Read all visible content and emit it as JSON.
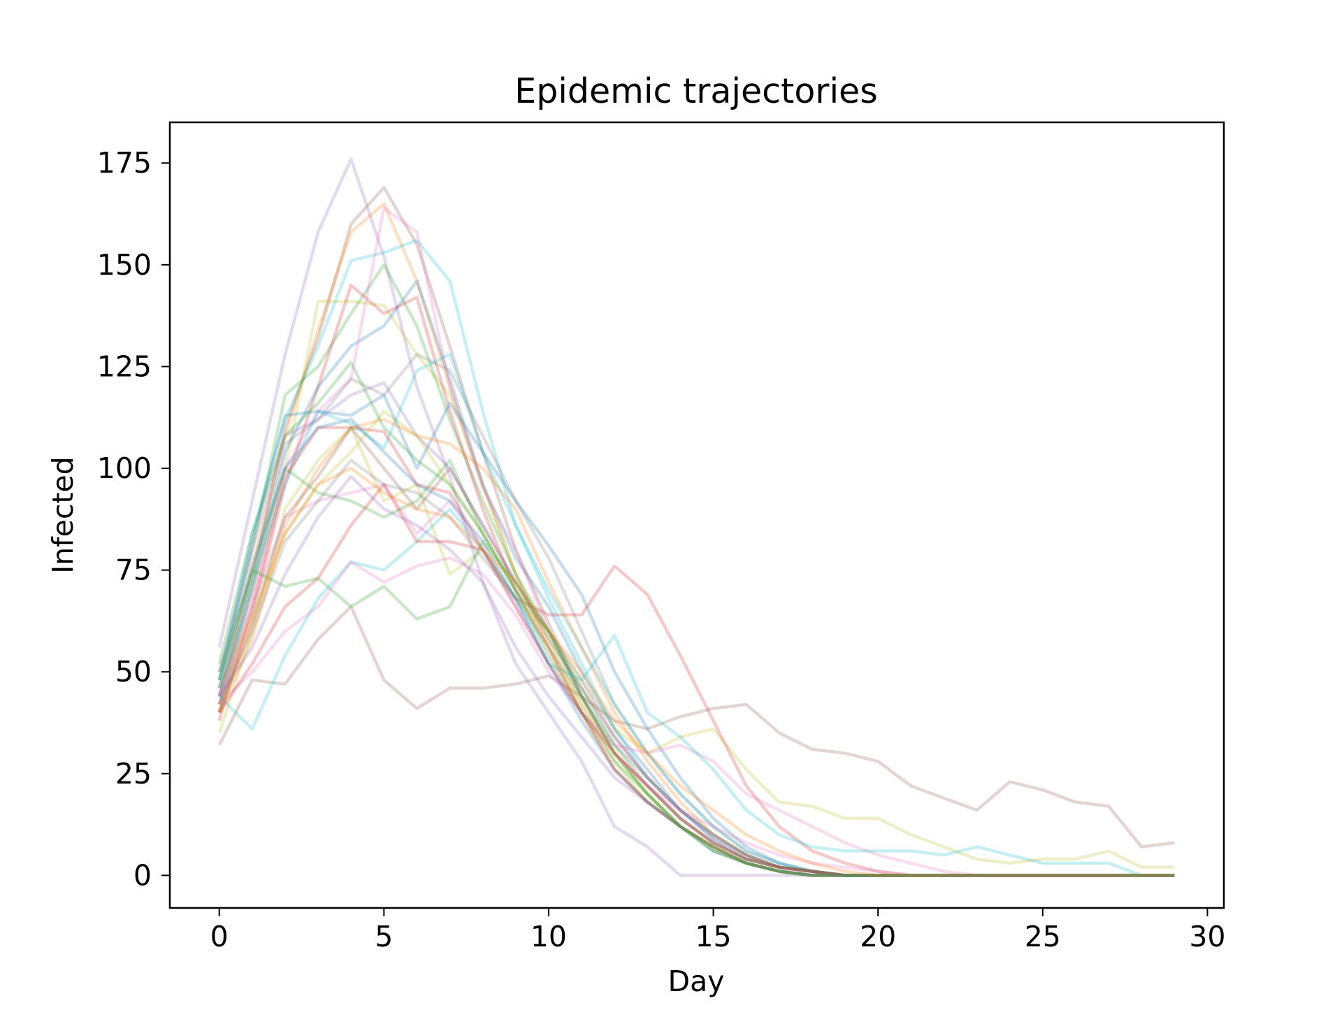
{
  "chart_data": {
    "type": "line",
    "title": "Epidemic trajectories",
    "xlabel": "Day",
    "ylabel": "Infected",
    "xlim": [
      -1.5,
      30.5
    ],
    "ylim": [
      -8,
      185
    ],
    "xticks": [
      0,
      5,
      10,
      15,
      20,
      25,
      30
    ],
    "yticks": [
      0,
      25,
      50,
      75,
      100,
      125,
      150,
      175
    ],
    "grid": false,
    "legend": "none",
    "line_opacity": 0.25,
    "x": [
      0,
      1,
      2,
      3,
      4,
      5,
      6,
      7,
      8,
      9,
      10,
      11,
      12,
      13,
      14,
      15,
      16,
      17,
      18,
      19,
      20,
      21,
      22,
      23,
      24,
      25,
      26,
      27,
      28,
      29
    ],
    "series": [
      {
        "color": "#8c564b",
        "values": [
          32,
          48,
          47,
          58,
          66,
          48,
          41,
          46,
          46,
          47,
          49,
          44,
          38,
          36,
          39,
          41,
          42,
          35,
          31,
          30,
          28,
          22,
          19,
          16,
          23,
          21,
          18,
          17,
          7,
          8
        ]
      },
      {
        "color": "#9467bd",
        "values": [
          56,
          92,
          128,
          158,
          176,
          152,
          120,
          98,
          72,
          52,
          40,
          28,
          12,
          7,
          0,
          0,
          0,
          0,
          0,
          0,
          0,
          0,
          0,
          0,
          0,
          0,
          0,
          0,
          0,
          0
        ]
      },
      {
        "color": "#8c564b",
        "values": [
          44,
          72,
          110,
          132,
          160,
          169,
          155,
          130,
          104,
          80,
          62,
          44,
          30,
          22,
          14,
          8,
          4,
          2,
          1,
          0,
          0,
          0,
          0,
          0,
          0,
          0,
          0,
          0,
          0,
          0
        ]
      },
      {
        "color": "#ff7f0e",
        "values": [
          42,
          76,
          108,
          134,
          158,
          165,
          146,
          120,
          96,
          74,
          56,
          40,
          26,
          18,
          12,
          7,
          3,
          1,
          0,
          0,
          0,
          0,
          0,
          0,
          0,
          0,
          0,
          0,
          0,
          0
        ]
      },
      {
        "color": "#17becf",
        "values": [
          48,
          84,
          112,
          130,
          151,
          153,
          156,
          146,
          114,
          86,
          68,
          52,
          36,
          24,
          16,
          10,
          5,
          2,
          1,
          0,
          0,
          0,
          0,
          0,
          0,
          0,
          0,
          0,
          0,
          0
        ]
      },
      {
        "color": "#bcbd22",
        "values": [
          40,
          70,
          100,
          141,
          141,
          140,
          128,
          118,
          96,
          74,
          58,
          42,
          28,
          18,
          12,
          6,
          3,
          1,
          0,
          0,
          0,
          0,
          0,
          0,
          0,
          0,
          0,
          0,
          0,
          0
        ]
      },
      {
        "color": "#2ca02c",
        "values": [
          46,
          80,
          118,
          125,
          138,
          150,
          135,
          112,
          92,
          74,
          60,
          44,
          30,
          20,
          12,
          7,
          3,
          1,
          0,
          0,
          0,
          0,
          0,
          0,
          0,
          0,
          0,
          0,
          0,
          0
        ]
      },
      {
        "color": "#d62728",
        "values": [
          42,
          64,
          96,
          120,
          145,
          138,
          142,
          114,
          90,
          70,
          56,
          40,
          26,
          18,
          12,
          7,
          3,
          1,
          0,
          0,
          0,
          0,
          0,
          0,
          0,
          0,
          0,
          0,
          0,
          0
        ]
      },
      {
        "color": "#1f77b4",
        "values": [
          44,
          70,
          104,
          120,
          130,
          135,
          146,
          122,
          96,
          78,
          66,
          50,
          36,
          26,
          16,
          9,
          4,
          2,
          1,
          0,
          0,
          0,
          0,
          0,
          0,
          0,
          0,
          0,
          0,
          0
        ]
      },
      {
        "color": "#e377c2",
        "values": [
          42,
          68,
          100,
          114,
          122,
          164,
          158,
          120,
          95,
          80,
          60,
          44,
          30,
          22,
          14,
          8,
          4,
          2,
          0,
          0,
          0,
          0,
          0,
          0,
          0,
          0,
          0,
          0,
          0,
          0
        ]
      },
      {
        "color": "#7f7f7f",
        "values": [
          44,
          74,
          106,
          112,
          122,
          118,
          128,
          124,
          108,
          92,
          78,
          60,
          42,
          30,
          20,
          12,
          6,
          3,
          1,
          0,
          0,
          0,
          0,
          0,
          0,
          0,
          0,
          0,
          0,
          0
        ]
      },
      {
        "color": "#1f77b4",
        "values": [
          48,
          82,
          113,
          114,
          113,
          118,
          100,
          116,
          104,
          92,
          81,
          69,
          50,
          36,
          24,
          14,
          7,
          3,
          1,
          0,
          0,
          0,
          0,
          0,
          0,
          0,
          0,
          0,
          0,
          0
        ]
      },
      {
        "color": "#9467bd",
        "values": [
          50,
          80,
          108,
          112,
          118,
          121,
          108,
          100,
          86,
          72,
          60,
          48,
          34,
          24,
          16,
          9,
          5,
          2,
          1,
          0,
          0,
          0,
          0,
          0,
          0,
          0,
          0,
          0,
          0,
          0
        ]
      },
      {
        "color": "#17becf",
        "values": [
          40,
          72,
          96,
          114,
          111,
          105,
          124,
          128,
          104,
          86,
          70,
          56,
          42,
          30,
          20,
          12,
          6,
          3,
          1,
          0,
          0,
          0,
          0,
          0,
          0,
          0,
          0,
          0,
          0,
          0
        ]
      },
      {
        "color": "#d62728",
        "values": [
          38,
          66,
          98,
          110,
          110,
          109,
          96,
          94,
          80,
          68,
          64,
          64,
          76,
          69,
          54,
          38,
          22,
          12,
          6,
          3,
          1,
          0,
          0,
          0,
          0,
          0,
          0,
          0,
          0,
          0
        ]
      },
      {
        "color": "#ff7f0e",
        "values": [
          40,
          58,
          86,
          100,
          110,
          112,
          108,
          106,
          100,
          90,
          72,
          56,
          40,
          28,
          18,
          10,
          5,
          2,
          1,
          0,
          0,
          0,
          0,
          0,
          0,
          0,
          0,
          0,
          0,
          0
        ]
      },
      {
        "color": "#bcbd22",
        "values": [
          35,
          60,
          90,
          102,
          110,
          92,
          96,
          74,
          80,
          68,
          60,
          48,
          36,
          30,
          34,
          36,
          26,
          18,
          17,
          14,
          14,
          10,
          7,
          4,
          3,
          4,
          4,
          6,
          2,
          2
        ]
      },
      {
        "color": "#2ca02c",
        "values": [
          48,
          74,
          100,
          94,
          92,
          88,
          92,
          102,
          84,
          70,
          60,
          46,
          32,
          22,
          14,
          8,
          4,
          2,
          1,
          0,
          0,
          0,
          0,
          0,
          0,
          0,
          0,
          0,
          0,
          0
        ]
      },
      {
        "color": "#8c564b",
        "values": [
          40,
          62,
          88,
          98,
          110,
          100,
          90,
          100,
          86,
          72,
          58,
          46,
          34,
          24,
          16,
          10,
          5,
          2,
          1,
          0,
          0,
          0,
          0,
          0,
          0,
          0,
          0,
          0,
          0,
          0
        ]
      },
      {
        "color": "#e377c2",
        "values": [
          44,
          66,
          88,
          92,
          94,
          96,
          84,
          92,
          80,
          66,
          52,
          40,
          32,
          30,
          32,
          28,
          20,
          16,
          12,
          8,
          5,
          3,
          1,
          0,
          0,
          0,
          0,
          0,
          0,
          0
        ]
      },
      {
        "color": "#7f7f7f",
        "values": [
          42,
          60,
          82,
          92,
          102,
          96,
          94,
          88,
          78,
          68,
          56,
          44,
          32,
          24,
          16,
          10,
          5,
          2,
          1,
          0,
          0,
          0,
          0,
          0,
          0,
          0,
          0,
          0,
          0,
          0
        ]
      },
      {
        "color": "#2ca02c",
        "values": [
          50,
          75,
          71,
          73,
          66,
          71,
          63,
          66,
          82,
          72,
          60,
          44,
          30,
          20,
          12,
          6,
          3,
          1,
          0,
          0,
          0,
          0,
          0,
          0,
          0,
          0,
          0,
          0,
          0,
          0
        ]
      },
      {
        "color": "#17becf",
        "values": [
          44,
          36,
          54,
          68,
          77,
          75,
          82,
          90,
          80,
          68,
          52,
          48,
          59,
          40,
          34,
          26,
          16,
          10,
          7,
          6,
          6,
          6,
          5,
          7,
          5,
          3,
          3,
          3,
          0,
          0
        ]
      },
      {
        "color": "#e377c2",
        "values": [
          42,
          50,
          60,
          66,
          77,
          72,
          76,
          78,
          74,
          64,
          50,
          40,
          30,
          22,
          16,
          12,
          8,
          5,
          3,
          2,
          1,
          0,
          0,
          0,
          0,
          0,
          0,
          0,
          0,
          0
        ]
      },
      {
        "color": "#d62728",
        "values": [
          40,
          52,
          66,
          73,
          86,
          96,
          82,
          82,
          80,
          66,
          52,
          40,
          30,
          22,
          14,
          8,
          4,
          2,
          1,
          0,
          0,
          0,
          0,
          0,
          0,
          0,
          0,
          0,
          0,
          0
        ]
      },
      {
        "color": "#9467bd",
        "values": [
          44,
          56,
          74,
          88,
          98,
          90,
          86,
          80,
          72,
          56,
          44,
          34,
          24,
          18,
          12,
          7,
          3,
          1,
          0,
          0,
          0,
          0,
          0,
          0,
          0,
          0,
          0,
          0,
          0,
          0
        ]
      },
      {
        "color": "#bcbd22",
        "values": [
          46,
          64,
          84,
          96,
          104,
          114,
          108,
          96,
          84,
          70,
          56,
          42,
          30,
          20,
          12,
          7,
          3,
          1,
          0,
          0,
          0,
          0,
          0,
          0,
          0,
          0,
          0,
          0,
          0,
          0
        ]
      },
      {
        "color": "#1f77b4",
        "values": [
          46,
          76,
          100,
          110,
          112,
          104,
          96,
          92,
          82,
          68,
          52,
          38,
          26,
          18,
          12,
          6,
          3,
          1,
          0,
          0,
          0,
          0,
          0,
          0,
          0,
          0,
          0,
          0,
          0,
          0
        ]
      },
      {
        "color": "#ff7f0e",
        "values": [
          40,
          62,
          84,
          96,
          100,
          94,
          90,
          88,
          80,
          72,
          60,
          50,
          38,
          30,
          22,
          16,
          10,
          6,
          3,
          1,
          0,
          0,
          0,
          0,
          0,
          0,
          0,
          0,
          0,
          0
        ]
      },
      {
        "color": "#2ca02c",
        "values": [
          52,
          84,
          108,
          116,
          126,
          110,
          102,
          96,
          84,
          70,
          54,
          40,
          28,
          20,
          12,
          7,
          3,
          1,
          0,
          0,
          0,
          0,
          0,
          0,
          0,
          0,
          0,
          0,
          0,
          0
        ]
      }
    ]
  }
}
